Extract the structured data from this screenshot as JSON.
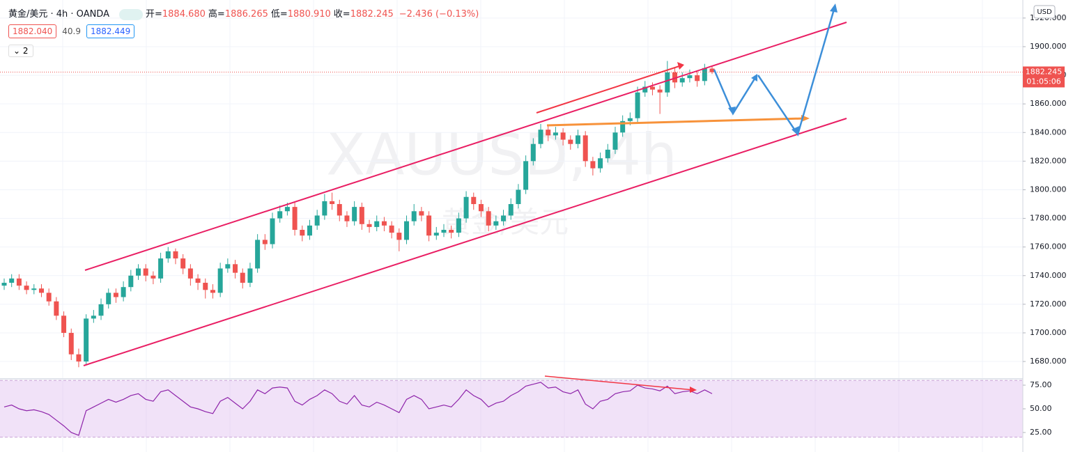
{
  "chart_data": [
    {
      "type": "candlestick",
      "symbol": "黄金/美元 · 4h · OANDA",
      "ohlc_header": [
        {
          "label": "开=",
          "value": "1884.680"
        },
        {
          "label": "高=",
          "value": "1886.265"
        },
        {
          "label": "低=",
          "value": "1880.910"
        },
        {
          "label": "收=",
          "value": "1882.245"
        }
      ],
      "change": "−2.436 (−0.13%)",
      "bid": "1882.040",
      "spread": "40.9",
      "ask": "1882.449",
      "indicators_count": "2",
      "currency": "USD",
      "countdown": "01:05:06",
      "watermark": "XAUUSD, 4h",
      "watermark_name": "黄金/美元",
      "up_color": "#26a69a",
      "down_color": "#ef5350",
      "ylim": [
        1669.8,
        1932.6
      ],
      "yticks": [
        {
          "value": 1680,
          "label": "1680.000"
        },
        {
          "value": 1700,
          "label": "1700.000"
        },
        {
          "value": 1720,
          "label": "1720.000"
        },
        {
          "value": 1740,
          "label": "1740.000"
        },
        {
          "value": 1760,
          "label": "1760.000"
        },
        {
          "value": 1780,
          "label": "1780.000"
        },
        {
          "value": 1800,
          "label": "1800.000"
        },
        {
          "value": 1820,
          "label": "1820.000"
        },
        {
          "value": 1840,
          "label": "1840.000"
        },
        {
          "value": 1860,
          "label": "1860.000"
        },
        {
          "value": 1880,
          "label": "1880.000"
        },
        {
          "value": 1900,
          "label": "1900.000"
        },
        {
          "value": 1920,
          "label": "1920.000"
        }
      ],
      "grid": true,
      "ohlc": [
        [
          1733,
          1738,
          1730,
          1735
        ],
        [
          1735,
          1741,
          1732,
          1738
        ],
        [
          1738,
          1741,
          1730,
          1733
        ],
        [
          1733,
          1736,
          1727,
          1730
        ],
        [
          1730,
          1734,
          1727,
          1731
        ],
        [
          1731,
          1734,
          1725,
          1728
        ],
        [
          1728,
          1731,
          1719,
          1722
        ],
        [
          1722,
          1725,
          1709,
          1712
        ],
        [
          1712,
          1715,
          1697,
          1700
        ],
        [
          1700,
          1703,
          1681,
          1685
        ],
        [
          1685,
          1689,
          1676,
          1680
        ],
        [
          1680,
          1713,
          1678,
          1710
        ],
        [
          1710,
          1716,
          1707,
          1712
        ],
        [
          1712,
          1724,
          1709,
          1720
        ],
        [
          1720,
          1731,
          1717,
          1728
        ],
        [
          1728,
          1731,
          1721,
          1725
        ],
        [
          1725,
          1736,
          1722,
          1732
        ],
        [
          1732,
          1744,
          1729,
          1740
        ],
        [
          1740,
          1748,
          1737,
          1745
        ],
        [
          1745,
          1748,
          1736,
          1740
        ],
        [
          1740,
          1743,
          1734,
          1738
        ],
        [
          1738,
          1756,
          1735,
          1752
        ],
        [
          1752,
          1760,
          1749,
          1757
        ],
        [
          1757,
          1759,
          1748,
          1752
        ],
        [
          1752,
          1755,
          1741,
          1745
        ],
        [
          1745,
          1748,
          1733,
          1738
        ],
        [
          1738,
          1741,
          1730,
          1735
        ],
        [
          1735,
          1738,
          1724,
          1730
        ],
        [
          1730,
          1734,
          1724,
          1728
        ],
        [
          1728,
          1749,
          1725,
          1745
        ],
        [
          1745,
          1752,
          1742,
          1748
        ],
        [
          1748,
          1751,
          1738,
          1742
        ],
        [
          1742,
          1745,
          1731,
          1735
        ],
        [
          1735,
          1749,
          1732,
          1745
        ],
        [
          1745,
          1769,
          1742,
          1765
        ],
        [
          1765,
          1769,
          1758,
          1762
        ],
        [
          1762,
          1784,
          1759,
          1780
        ],
        [
          1780,
          1789,
          1777,
          1785
        ],
        [
          1785,
          1791,
          1782,
          1788
        ],
        [
          1788,
          1791,
          1768,
          1772
        ],
        [
          1772,
          1775,
          1764,
          1768
        ],
        [
          1768,
          1779,
          1765,
          1775
        ],
        [
          1775,
          1786,
          1772,
          1782
        ],
        [
          1782,
          1797,
          1779,
          1792
        ],
        [
          1792,
          1798,
          1786,
          1790
        ],
        [
          1790,
          1793,
          1778,
          1782
        ],
        [
          1782,
          1785,
          1774,
          1778
        ],
        [
          1778,
          1792,
          1775,
          1788
        ],
        [
          1788,
          1791,
          1772,
          1776
        ],
        [
          1776,
          1779,
          1770,
          1774
        ],
        [
          1774,
          1782,
          1771,
          1778
        ],
        [
          1778,
          1781,
          1771,
          1775
        ],
        [
          1775,
          1778,
          1766,
          1770
        ],
        [
          1770,
          1773,
          1757,
          1765
        ],
        [
          1765,
          1782,
          1762,
          1778
        ],
        [
          1778,
          1790,
          1775,
          1785
        ],
        [
          1785,
          1788,
          1778,
          1782
        ],
        [
          1782,
          1785,
          1764,
          1768
        ],
        [
          1768,
          1774,
          1765,
          1770
        ],
        [
          1770,
          1776,
          1767,
          1772
        ],
        [
          1772,
          1775,
          1766,
          1770
        ],
        [
          1770,
          1784,
          1767,
          1780
        ],
        [
          1780,
          1799,
          1777,
          1795
        ],
        [
          1795,
          1798,
          1786,
          1790
        ],
        [
          1790,
          1793,
          1781,
          1785
        ],
        [
          1785,
          1788,
          1771,
          1775
        ],
        [
          1775,
          1782,
          1772,
          1778
        ],
        [
          1778,
          1786,
          1775,
          1782
        ],
        [
          1782,
          1794,
          1779,
          1790
        ],
        [
          1790,
          1804,
          1787,
          1800
        ],
        [
          1800,
          1824,
          1797,
          1820
        ],
        [
          1820,
          1836,
          1817,
          1832
        ],
        [
          1832,
          1846,
          1829,
          1842
        ],
        [
          1842,
          1845,
          1834,
          1838
        ],
        [
          1838,
          1844,
          1835,
          1840
        ],
        [
          1840,
          1843,
          1831,
          1835
        ],
        [
          1835,
          1838,
          1828,
          1832
        ],
        [
          1832,
          1842,
          1829,
          1838
        ],
        [
          1838,
          1841,
          1816,
          1820
        ],
        [
          1820,
          1823,
          1810,
          1815
        ],
        [
          1815,
          1826,
          1812,
          1822
        ],
        [
          1822,
          1832,
          1819,
          1828
        ],
        [
          1828,
          1844,
          1825,
          1840
        ],
        [
          1840,
          1852,
          1837,
          1848
        ],
        [
          1848,
          1854,
          1845,
          1850
        ],
        [
          1850,
          1872,
          1846,
          1868
        ],
        [
          1868,
          1876,
          1865,
          1872
        ],
        [
          1872,
          1875,
          1866,
          1870
        ],
        [
          1870,
          1873,
          1853,
          1868
        ],
        [
          1868,
          1890,
          1865,
          1882
        ],
        [
          1882,
          1885,
          1871,
          1875
        ],
        [
          1875,
          1882,
          1872,
          1878
        ],
        [
          1878,
          1884,
          1875,
          1880
        ],
        [
          1880,
          1883,
          1872,
          1876
        ],
        [
          1876,
          1888,
          1873,
          1885
        ],
        [
          1884.68,
          1886.265,
          1880.91,
          1882.245
        ]
      ]
    },
    {
      "type": "line",
      "color": "#8e24aa",
      "band": [
        20,
        80
      ],
      "ylim": [
        4.4,
        80.9
      ],
      "yticks": [
        {
          "value": 25,
          "label": "25.00"
        },
        {
          "value": 50,
          "label": "50.00"
        },
        {
          "value": 75,
          "label": "75.00"
        }
      ],
      "values": [
        52,
        54,
        50,
        48,
        49,
        47,
        44,
        38,
        32,
        25,
        22,
        48,
        52,
        56,
        60,
        57,
        60,
        64,
        66,
        60,
        58,
        68,
        70,
        64,
        58,
        52,
        50,
        47,
        45,
        58,
        62,
        56,
        50,
        58,
        70,
        66,
        72,
        73,
        72,
        58,
        54,
        60,
        64,
        70,
        66,
        58,
        55,
        64,
        54,
        52,
        57,
        54,
        50,
        46,
        60,
        64,
        60,
        50,
        52,
        54,
        52,
        60,
        70,
        64,
        60,
        52,
        56,
        58,
        64,
        68,
        74,
        76,
        78,
        72,
        73,
        68,
        66,
        70,
        55,
        50,
        58,
        60,
        66,
        68,
        69,
        75,
        72,
        71,
        69,
        74,
        66,
        68,
        69,
        66,
        70,
        66
      ]
    }
  ]
}
